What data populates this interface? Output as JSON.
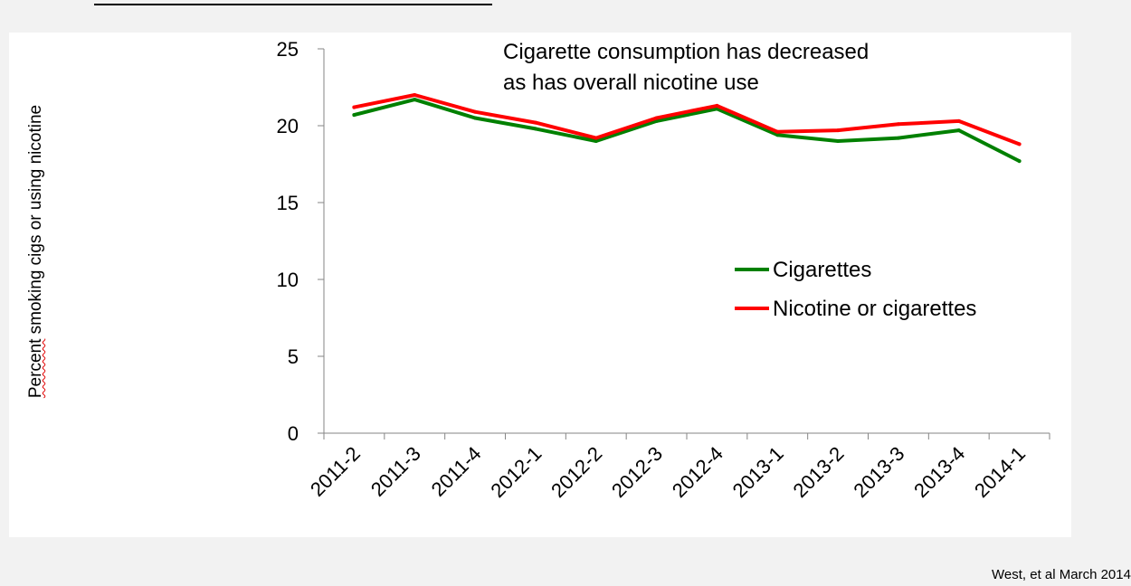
{
  "chart_data": {
    "type": "line",
    "title": "",
    "annotation_lines": [
      "Cigarette consumption has decreased",
      "as has overall nicotine use"
    ],
    "xlabel": "",
    "ylabel_parts": [
      "Percent",
      " smoking cigs or using nicotine"
    ],
    "categories": [
      "2011-2",
      "2011-3",
      "2011-4",
      "2012-1",
      "2012-2",
      "2012-3",
      "2012-4",
      "2013-1",
      "2013-2",
      "2013-3",
      "2013-4",
      "2014-1"
    ],
    "yticks": [
      "0",
      "5",
      "10",
      "15",
      "20",
      "25"
    ],
    "ylim": [
      0,
      25
    ],
    "grid": false,
    "legend_position": "right-middle",
    "series": [
      {
        "name": "Cigarettes",
        "color": "#008000",
        "values": [
          20.7,
          21.7,
          20.5,
          19.8,
          19.0,
          20.3,
          21.1,
          19.4,
          19.0,
          19.2,
          19.7,
          17.7
        ]
      },
      {
        "name": "Nicotine or cigarettes",
        "color": "#ff0000",
        "values": [
          21.2,
          22.0,
          20.9,
          20.2,
          19.2,
          20.5,
          21.3,
          19.6,
          19.7,
          20.1,
          20.3,
          18.8
        ]
      }
    ]
  },
  "footer": {
    "credit": "West, et al   March 2014"
  }
}
